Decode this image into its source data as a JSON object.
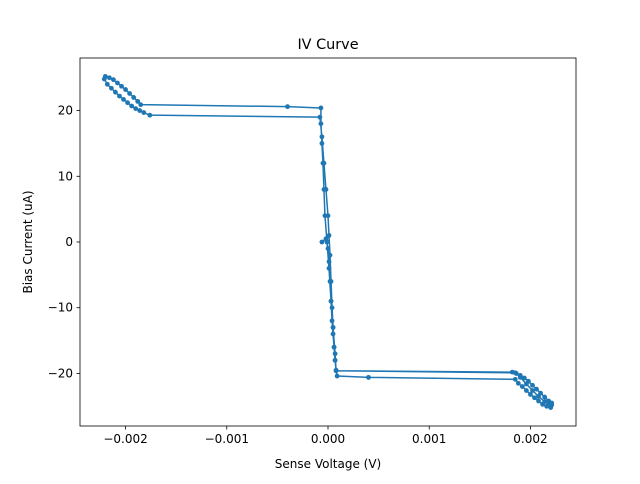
{
  "chart_data": {
    "type": "line",
    "title": "IV Curve",
    "xlabel": "Sense Voltage (V)",
    "ylabel": "Bias Current (uA)",
    "xlim": [
      -0.00245,
      0.00245
    ],
    "ylim": [
      -28,
      28
    ],
    "xticks": [
      {
        "value": -0.002,
        "label": "−0.002"
      },
      {
        "value": -0.001,
        "label": "−0.001"
      },
      {
        "value": 0.0,
        "label": "0.000"
      },
      {
        "value": 0.001,
        "label": "0.001"
      },
      {
        "value": 0.002,
        "label": "0.002"
      }
    ],
    "yticks": [
      {
        "value": -20,
        "label": "−20"
      },
      {
        "value": -10,
        "label": "−10"
      },
      {
        "value": 0,
        "label": "0"
      },
      {
        "value": 10,
        "label": "10"
      },
      {
        "value": 20,
        "label": "20"
      }
    ],
    "grid": false,
    "colors": {
      "series": "#1f77b4"
    },
    "series": [
      {
        "marker": "circle",
        "x": [
          -6e-05,
          -2e-05,
          0.0,
          1e-05,
          2e-05,
          3e-05,
          4e-05,
          5e-05,
          6e-05,
          7e-05,
          8e-05,
          9e-05,
          0.0004,
          0.00185,
          0.00188,
          0.00192,
          0.00196,
          0.002,
          0.00204,
          0.00208,
          0.00212,
          0.00216,
          0.0022,
          0.00221,
          0.00218,
          0.00214,
          0.0021,
          0.00206,
          0.00202,
          0.00198,
          0.00194,
          0.0019,
          0.00186,
          0.00182,
          8e-05,
          7e-05,
          5e-05,
          3e-05,
          1e-05,
          -1e-05,
          -3e-05,
          -4e-05,
          -5e-05,
          -6e-05,
          -7e-05,
          -7e-05,
          -0.0004,
          -0.00185,
          -0.00188,
          -0.00192,
          -0.00196,
          -0.002,
          -0.00204,
          -0.00208,
          -0.00212,
          -0.00216,
          -0.0022,
          -0.00221,
          -0.00218,
          -0.00214,
          -0.0021,
          -0.00206,
          -0.00202,
          -0.00198,
          -0.00194,
          -0.0019,
          -0.00186,
          -0.00182,
          -0.00176,
          -8e-05,
          -6e-05,
          -4e-05,
          -2e-05,
          0.0,
          1e-05,
          2e-05,
          3e-05,
          4e-05,
          5e-05,
          6e-05,
          7e-05,
          8e-05,
          0.00185,
          0.0019,
          0.00196,
          0.00202,
          0.00208,
          0.00214,
          0.00219,
          0.00221
        ],
        "y": [
          0.0,
          0.5,
          -1.0,
          -3.0,
          -6.0,
          -9.0,
          -12.0,
          -14.0,
          -16.0,
          -18.0,
          -19.5,
          -20.4,
          -20.6,
          -20.9,
          -21.5,
          -22.0,
          -22.6,
          -23.2,
          -23.7,
          -24.2,
          -24.7,
          -25.0,
          -25.2,
          -24.8,
          -24.2,
          -23.6,
          -23.0,
          -22.4,
          -21.8,
          -21.2,
          -20.7,
          -20.3,
          -20.0,
          -19.8,
          -19.6,
          -17.0,
          -13.0,
          -9.0,
          -4.0,
          0.0,
          4.0,
          8.0,
          12.0,
          15.0,
          18.0,
          20.4,
          20.6,
          20.9,
          21.4,
          22.0,
          22.6,
          23.2,
          23.7,
          24.2,
          24.7,
          25.0,
          25.2,
          24.8,
          24.0,
          23.4,
          22.8,
          22.2,
          21.7,
          21.2,
          20.7,
          20.3,
          20.0,
          19.7,
          19.3,
          19.0,
          16.0,
          12.0,
          8.0,
          4.0,
          1.0,
          -2.0,
          -6.0,
          -10.0,
          -13.0,
          -16.0,
          -18.0,
          -19.6,
          -19.9,
          -20.6,
          -21.6,
          -22.6,
          -23.5,
          -24.3,
          -24.8,
          -24.5
        ]
      }
    ]
  }
}
